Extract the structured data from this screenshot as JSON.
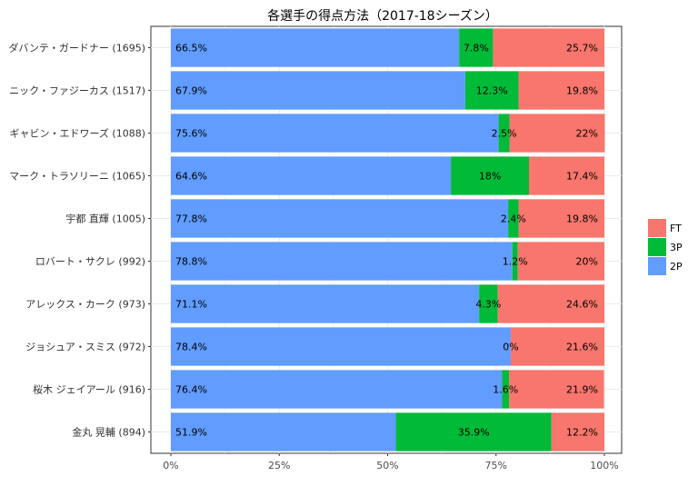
{
  "chart_data": {
    "type": "bar",
    "orientation": "horizontal",
    "stacked": true,
    "title": "各選手の得点方法（2017-18シーズン）",
    "xlabel": "",
    "ylabel": "",
    "xlim": [
      0,
      100
    ],
    "x_ticks": [
      "0%",
      "25%",
      "50%",
      "75%",
      "100%"
    ],
    "x_tick_values": [
      0,
      25,
      50,
      75,
      100
    ],
    "grid": true,
    "legend_position": "right",
    "categories": [
      "ダバンテ・ガードナー (1695)",
      "ニック・ファジーカス (1517)",
      "ギャビン・エドワーズ (1088)",
      "マーク・トラソリーニ (1065)",
      "宇都 直輝 (1005)",
      "ロバート・サクレ (992)",
      "アレックス・カーク (973)",
      "ジョシュア・スミス (972)",
      "桜木 ジェイアール (916)",
      "金丸 晃輔 (894)"
    ],
    "series": [
      {
        "name": "2P",
        "color": "#619CFF",
        "values": [
          66.5,
          67.9,
          75.6,
          64.6,
          77.8,
          78.8,
          71.1,
          78.4,
          76.4,
          51.9
        ],
        "labels": [
          "66.5%",
          "67.9%",
          "75.6%",
          "64.6%",
          "77.8%",
          "78.8%",
          "71.1%",
          "78.4%",
          "76.4%",
          "51.9%"
        ]
      },
      {
        "name": "3P",
        "color": "#00BA38",
        "values": [
          7.8,
          12.3,
          2.5,
          18,
          2.4,
          1.2,
          4.3,
          0,
          1.6,
          35.9
        ],
        "labels": [
          "7.8%",
          "12.3%",
          "2.5%",
          "18%",
          "2.4%",
          "1.2%",
          "4.3%",
          "0%",
          "1.6%",
          "35.9%"
        ]
      },
      {
        "name": "FT",
        "color": "#F8766D",
        "values": [
          25.7,
          19.8,
          22,
          17.4,
          19.8,
          20,
          24.6,
          21.6,
          21.9,
          12.2
        ],
        "labels": [
          "25.7%",
          "19.8%",
          "22%",
          "17.4%",
          "19.8%",
          "20%",
          "24.6%",
          "21.6%",
          "21.9%",
          "12.2%"
        ]
      }
    ],
    "legend": [
      {
        "name": "FT",
        "color": "#F8766D"
      },
      {
        "name": "3P",
        "color": "#00BA38"
      },
      {
        "name": "2P",
        "color": "#619CFF"
      }
    ]
  }
}
